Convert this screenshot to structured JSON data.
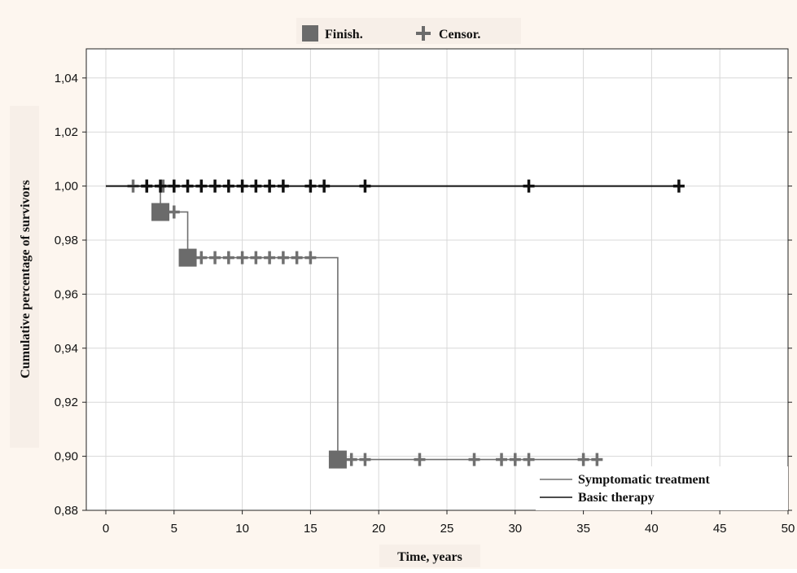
{
  "chart_data": {
    "type": "line",
    "xlabel": "Time, years",
    "ylabel": "Cumulative percentage of survivors",
    "xlim": [
      0,
      50
    ],
    "ylim": [
      0.88,
      1.05
    ],
    "x_ticks": [
      0,
      5,
      10,
      15,
      20,
      25,
      30,
      35,
      40,
      45,
      50
    ],
    "x_tick_labels": [
      "0",
      "5",
      "10",
      "15",
      "20",
      "25",
      "30",
      "35",
      "40",
      "45",
      "50"
    ],
    "y_ticks": [
      0.88,
      0.9,
      0.92,
      0.94,
      0.96,
      0.98,
      1.0,
      1.02,
      1.04
    ],
    "y_tick_labels": [
      "0,88",
      "0,90",
      "0,92",
      "0,94",
      "0,96",
      "0,98",
      "1,00",
      "1,02",
      "1,04"
    ],
    "grid": true,
    "marker_legend": {
      "position": "top",
      "finish_label": "Finish.",
      "censor_label": "Censor."
    },
    "series_legend_position": "bottom-right",
    "series": [
      {
        "name": "Symptomatic treatment",
        "color": "#707070",
        "steps": [
          [
            0,
            1.0
          ],
          [
            4,
            0.9904
          ],
          [
            6,
            0.9735
          ],
          [
            17,
            0.8988
          ],
          [
            36.4,
            0.8988
          ]
        ],
        "finish": [
          [
            4,
            0.9904
          ],
          [
            6,
            0.9735
          ],
          [
            17,
            0.8988
          ]
        ],
        "censor": [
          [
            2,
            1.0
          ],
          [
            3,
            1.0
          ],
          [
            4.2,
            1.0
          ],
          [
            5,
            0.9904
          ],
          [
            7,
            0.9735
          ],
          [
            8,
            0.9735
          ],
          [
            9,
            0.9735
          ],
          [
            10,
            0.9735
          ],
          [
            11,
            0.9735
          ],
          [
            12,
            0.9735
          ],
          [
            13,
            0.9735
          ],
          [
            14,
            0.9735
          ],
          [
            15,
            0.9735
          ],
          [
            18,
            0.8988
          ],
          [
            19,
            0.8988
          ],
          [
            23,
            0.8988
          ],
          [
            27,
            0.8988
          ],
          [
            29,
            0.8988
          ],
          [
            30,
            0.8988
          ],
          [
            31,
            0.8988
          ],
          [
            35,
            0.8988
          ],
          [
            36,
            0.8988
          ]
        ]
      },
      {
        "name": "Basic therapy",
        "color": "#111111",
        "steps": [
          [
            0,
            1.0
          ],
          [
            42.3,
            1.0
          ]
        ],
        "finish": [],
        "censor": [
          [
            3,
            1.0
          ],
          [
            4,
            1.0
          ],
          [
            5,
            1.0
          ],
          [
            6,
            1.0
          ],
          [
            7,
            1.0
          ],
          [
            8,
            1.0
          ],
          [
            9,
            1.0
          ],
          [
            10,
            1.0
          ],
          [
            11,
            1.0
          ],
          [
            12,
            1.0
          ],
          [
            13,
            1.0
          ],
          [
            15,
            1.0
          ],
          [
            16,
            1.0
          ],
          [
            19,
            1.0
          ],
          [
            31,
            1.0
          ],
          [
            42,
            1.0
          ]
        ]
      }
    ]
  }
}
